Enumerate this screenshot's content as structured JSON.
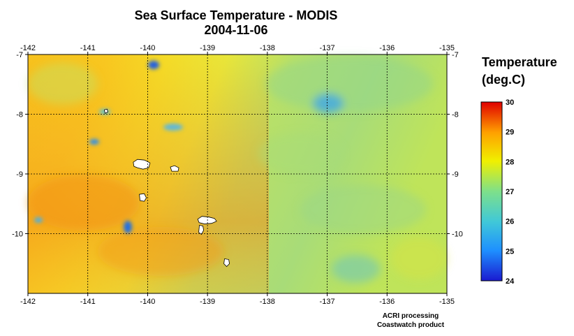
{
  "title": "Sea Surface Temperature - MODIS",
  "date": "2004-11-06",
  "map": {
    "lon_range": [
      -142,
      -135
    ],
    "lat_range": [
      -11,
      -7
    ],
    "lon_ticks": [
      "-142",
      "-141",
      "-140",
      "-139",
      "-138",
      "-137",
      "-136",
      "-135"
    ],
    "lat_ticks": [
      "-7",
      "-8",
      "-9",
      "-10"
    ],
    "lat_tick_values": [
      -7,
      -8,
      -9,
      -10
    ],
    "grid": "dotted",
    "islands": [
      {
        "lon": -140.1,
        "lat": -8.85
      },
      {
        "lon": -139.55,
        "lat": -8.92
      },
      {
        "lon": -140.08,
        "lat": -9.4
      },
      {
        "lon": -139.0,
        "lat": -9.78
      },
      {
        "lon": -139.1,
        "lat": -9.93
      },
      {
        "lon": -138.68,
        "lat": -10.48
      },
      {
        "lon": -140.7,
        "lat": -7.95
      }
    ]
  },
  "colorbar": {
    "title_line1": "Temperature",
    "title_line2": "(deg.C)",
    "ticks": [
      "30",
      "29",
      "28",
      "27",
      "26",
      "25",
      "24"
    ],
    "min": 24,
    "max": 30,
    "colors": [
      "#1a1ad0",
      "#1e90ff",
      "#40c8d8",
      "#7ee08a",
      "#f0f000",
      "#ffa000",
      "#e00000"
    ]
  },
  "credits": {
    "line1": "ACRI processing",
    "line2": "Coastwatch product"
  }
}
